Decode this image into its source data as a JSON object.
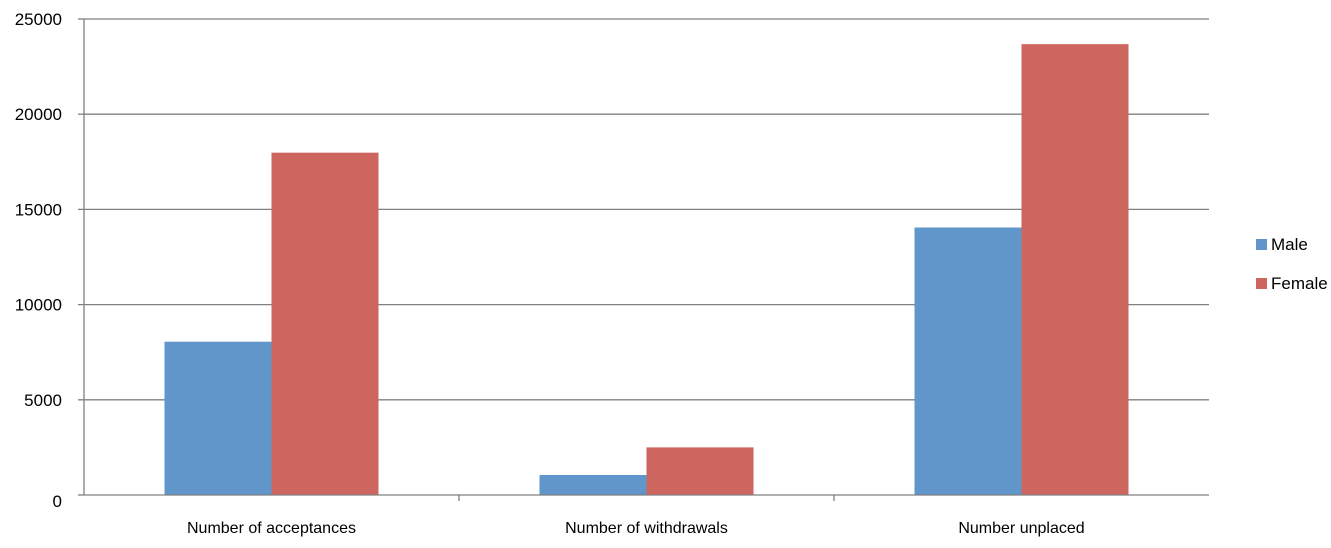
{
  "chart_data": {
    "type": "bar",
    "categories": [
      "Number of acceptances",
      "Number of withdrawals",
      "Number unplaced"
    ],
    "series": [
      {
        "name": "Male",
        "values": [
          8050,
          1050,
          14050
        ]
      },
      {
        "name": "Female",
        "values": [
          17980,
          2500,
          23680
        ]
      }
    ],
    "ylim": [
      0,
      25000
    ],
    "yticks": [
      0,
      5000,
      10000,
      15000,
      20000,
      25000
    ],
    "grid": true,
    "legend_position": "right",
    "colors": {
      "Male": "#6096c9",
      "Female": "#cc665e",
      "grid": "#808080",
      "axis": "#808080"
    }
  }
}
